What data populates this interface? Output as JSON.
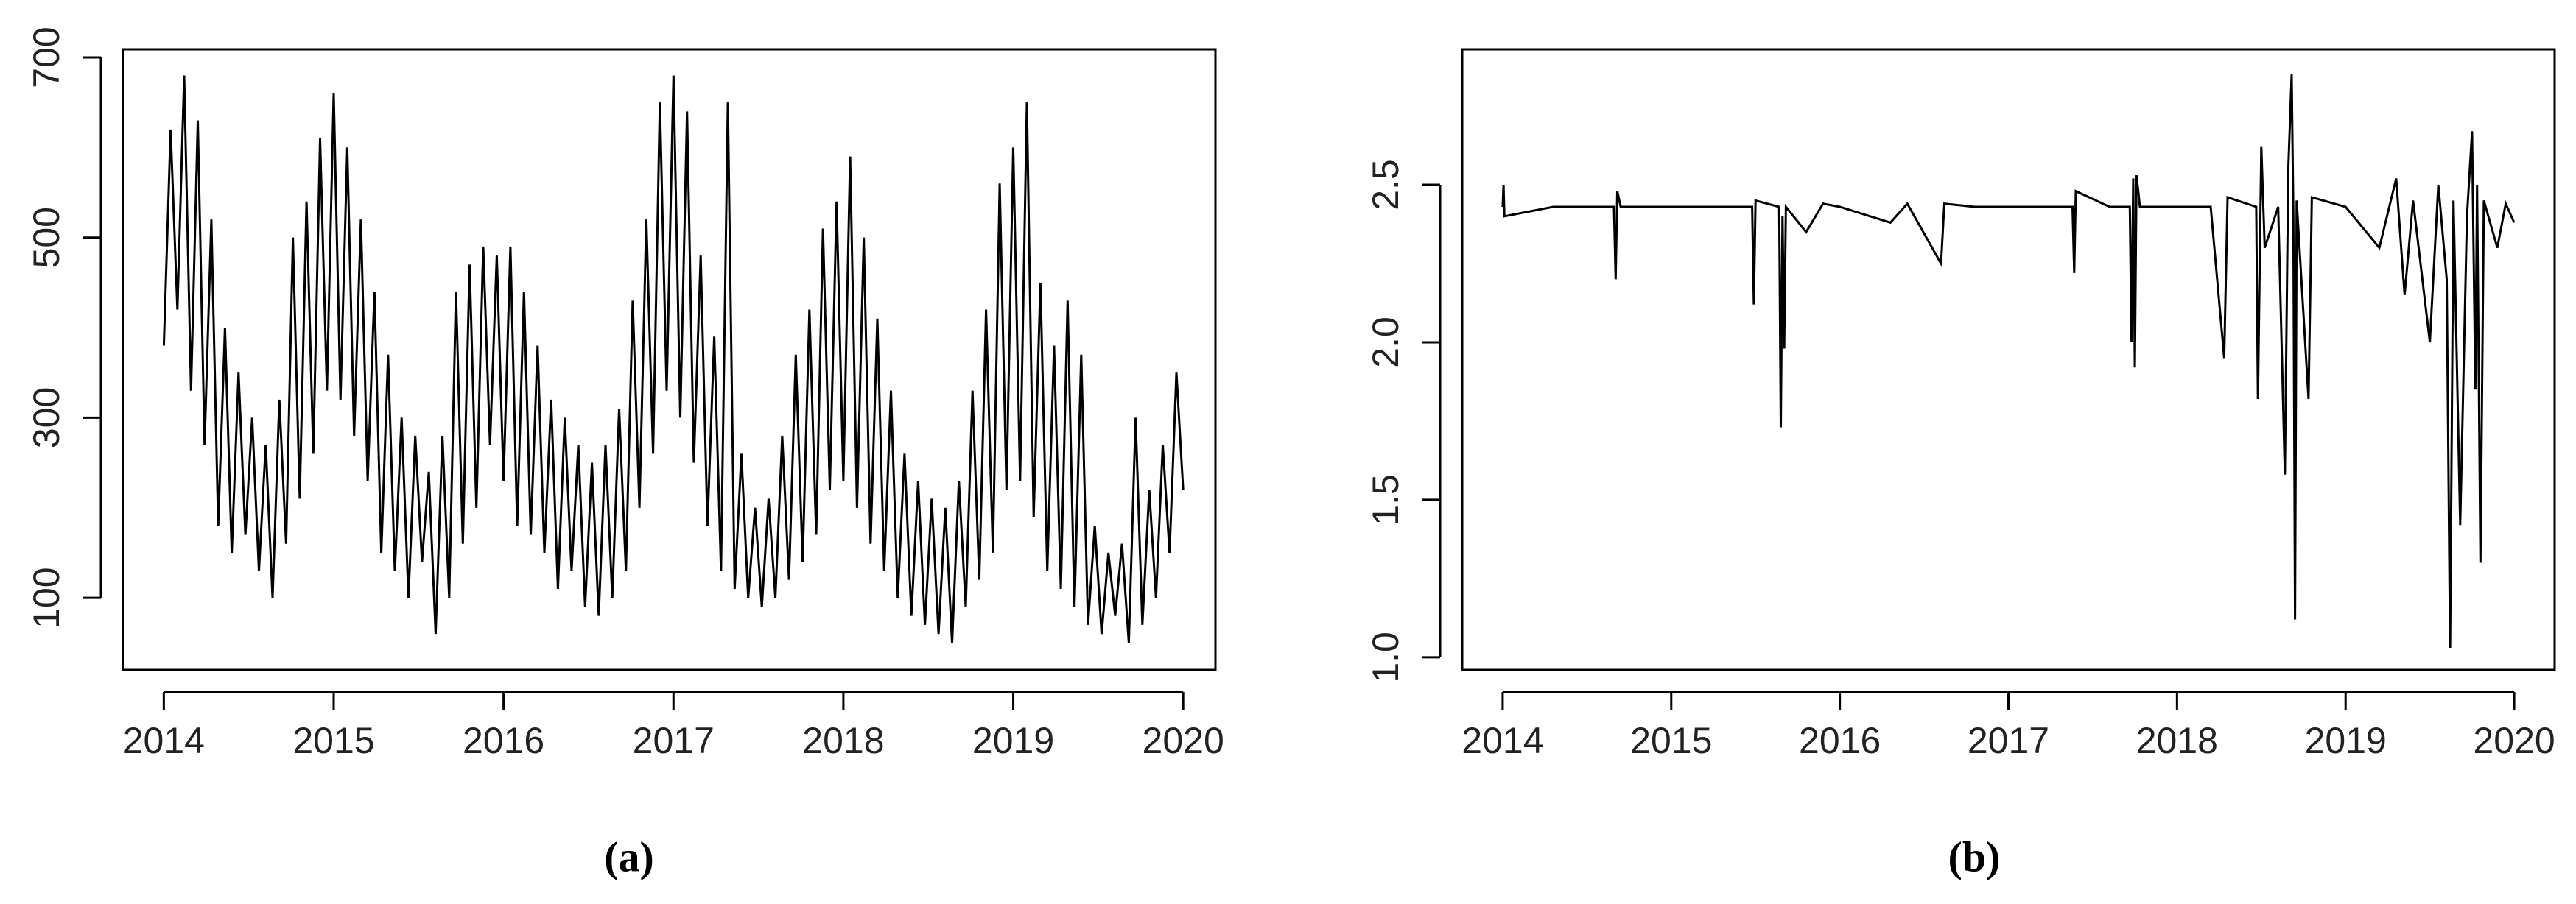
{
  "chart_data": [
    {
      "type": "line",
      "title": "(a)",
      "color": "#000000",
      "xlim": [
        2013.76,
        2020.19
      ],
      "ylim": [
        20,
        709
      ],
      "xticks": [
        2014,
        2015,
        2016,
        2017,
        2018,
        2019,
        2020
      ],
      "yticks": [
        100,
        300,
        500,
        700
      ],
      "x": [
        2014,
        2014.04,
        2014.08,
        2014.12,
        2014.16,
        2014.2,
        2014.24,
        2014.28,
        2014.32,
        2014.36,
        2014.4,
        2014.44,
        2014.48,
        2014.52,
        2014.56,
        2014.6,
        2014.64,
        2014.68,
        2014.72,
        2014.76,
        2014.8,
        2014.84,
        2014.88,
        2014.92,
        2014.96,
        2015,
        2015.04,
        2015.08,
        2015.12,
        2015.16,
        2015.2,
        2015.24,
        2015.28,
        2015.32,
        2015.36,
        2015.4,
        2015.44,
        2015.48,
        2015.52,
        2015.56,
        2015.6,
        2015.64,
        2015.68,
        2015.72,
        2015.76,
        2015.8,
        2015.84,
        2015.88,
        2015.92,
        2015.96,
        2016,
        2016.04,
        2016.08,
        2016.12,
        2016.16,
        2016.2,
        2016.24,
        2016.28,
        2016.32,
        2016.36,
        2016.4,
        2016.44,
        2016.48,
        2016.52,
        2016.56,
        2016.6,
        2016.64,
        2016.68,
        2016.72,
        2016.76,
        2016.8,
        2016.84,
        2016.88,
        2016.92,
        2016.96,
        2017,
        2017.04,
        2017.08,
        2017.12,
        2017.16,
        2017.2,
        2017.24,
        2017.28,
        2017.32,
        2017.36,
        2017.4,
        2017.44,
        2017.48,
        2017.52,
        2017.56,
        2017.6,
        2017.64,
        2017.68,
        2017.72,
        2017.76,
        2017.8,
        2017.84,
        2017.88,
        2017.92,
        2017.96,
        2018,
        2018.04,
        2018.08,
        2018.12,
        2018.16,
        2018.2,
        2018.24,
        2018.28,
        2018.32,
        2018.36,
        2018.4,
        2018.44,
        2018.48,
        2018.52,
        2018.56,
        2018.6,
        2018.64,
        2018.68,
        2018.72,
        2018.76,
        2018.8,
        2018.84,
        2018.88,
        2018.92,
        2018.96,
        2019,
        2019.04,
        2019.08,
        2019.12,
        2019.16,
        2019.2,
        2019.24,
        2019.28,
        2019.32,
        2019.36,
        2019.4,
        2019.44,
        2019.48,
        2019.52,
        2019.56,
        2019.6,
        2019.64,
        2019.68,
        2019.72,
        2019.76,
        2019.8,
        2019.84,
        2019.88,
        2019.92,
        2019.96,
        2020
      ],
      "values": [
        380,
        620,
        420,
        680,
        330,
        630,
        270,
        520,
        180,
        400,
        150,
        350,
        170,
        300,
        130,
        270,
        100,
        320,
        160,
        500,
        210,
        540,
        260,
        610,
        330,
        660,
        320,
        600,
        280,
        520,
        230,
        440,
        150,
        370,
        130,
        300,
        100,
        280,
        140,
        240,
        60,
        280,
        100,
        440,
        160,
        470,
        200,
        490,
        270,
        480,
        230,
        490,
        180,
        440,
        170,
        380,
        150,
        320,
        110,
        300,
        130,
        270,
        90,
        250,
        80,
        270,
        100,
        310,
        130,
        430,
        200,
        520,
        260,
        650,
        330,
        680,
        300,
        640,
        250,
        480,
        180,
        390,
        130,
        650,
        110,
        260,
        100,
        200,
        90,
        210,
        100,
        280,
        120,
        370,
        140,
        420,
        170,
        510,
        220,
        540,
        230,
        590,
        200,
        500,
        160,
        410,
        130,
        330,
        100,
        260,
        80,
        230,
        70,
        210,
        60,
        200,
        50,
        230,
        90,
        330,
        120,
        420,
        150,
        560,
        220,
        600,
        230,
        650,
        190,
        450,
        130,
        380,
        110,
        430,
        90,
        370,
        70,
        180,
        60,
        150,
        80,
        160,
        50,
        300,
        70,
        220,
        100,
        270,
        150,
        350,
        220
      ]
    },
    {
      "type": "line",
      "title": "(b)",
      "color": "#000000",
      "xlim": [
        2013.76,
        2020.24
      ],
      "ylim": [
        0.96,
        2.93
      ],
      "xticks": [
        2014,
        2015,
        2016,
        2017,
        2018,
        2019,
        2020
      ],
      "yticks": [
        {
          "value": 1,
          "label": "1.0"
        },
        1.5,
        {
          "value": 2,
          "label": "2.0"
        },
        2.5
      ],
      "x": [
        2014,
        2014.005,
        2014.01,
        2014.3,
        2014.66,
        2014.67,
        2014.68,
        2014.7,
        2015,
        2015.48,
        2015.49,
        2015.5,
        2015.64,
        2015.65,
        2015.66,
        2015.67,
        2015.68,
        2015.8,
        2015.9,
        2016,
        2016.3,
        2016.4,
        2016.6,
        2016.62,
        2016.8,
        2017,
        2017.38,
        2017.39,
        2017.4,
        2017.6,
        2017.72,
        2017.73,
        2017.74,
        2017.75,
        2017.76,
        2017.78,
        2018,
        2018.2,
        2018.28,
        2018.3,
        2018.47,
        2018.48,
        2018.5,
        2018.52,
        2018.6,
        2018.64,
        2018.66,
        2018.68,
        2018.69,
        2018.7,
        2018.71,
        2018.78,
        2018.8,
        2019,
        2019.2,
        2019.3,
        2019.35,
        2019.4,
        2019.5,
        2019.55,
        2019.6,
        2019.62,
        2019.64,
        2019.68,
        2019.72,
        2019.75,
        2019.77,
        2019.78,
        2019.8,
        2019.82,
        2019.9,
        2019.95,
        2020
      ],
      "values": [
        2.43,
        2.5,
        2.4,
        2.43,
        2.43,
        2.2,
        2.48,
        2.43,
        2.43,
        2.43,
        2.12,
        2.45,
        2.43,
        1.73,
        2.4,
        1.98,
        2.43,
        2.35,
        2.44,
        2.43,
        2.38,
        2.44,
        2.25,
        2.44,
        2.43,
        2.43,
        2.43,
        2.22,
        2.48,
        2.43,
        2.43,
        2,
        2.52,
        1.92,
        2.53,
        2.43,
        2.43,
        2.43,
        1.95,
        2.46,
        2.43,
        1.82,
        2.62,
        2.3,
        2.43,
        1.58,
        2.55,
        2.85,
        2.4,
        1.12,
        2.45,
        1.82,
        2.46,
        2.43,
        2.3,
        2.52,
        2.15,
        2.45,
        2,
        2.5,
        2.2,
        1.03,
        2.45,
        1.42,
        2.4,
        2.67,
        1.85,
        2.5,
        1.3,
        2.45,
        2.3,
        2.44,
        2.38
      ]
    }
  ]
}
